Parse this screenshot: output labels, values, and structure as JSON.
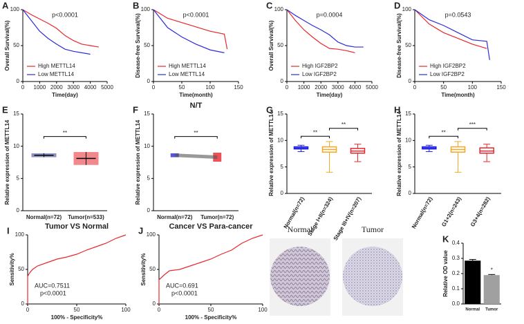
{
  "chart_data": [
    {
      "type": "survival",
      "label": "A",
      "annotation": "p<0.0001",
      "xlabel": "Time(day)",
      "ylabel": "Overall Survival(%)",
      "xlim": [
        0,
        5000
      ],
      "xticks": [
        0,
        1000,
        2000,
        3000,
        4000,
        5000
      ],
      "ylim": [
        0,
        100
      ],
      "yticks": [
        0,
        50,
        100
      ],
      "series": [
        {
          "name": "High METTL14",
          "color": "#e8262b",
          "x": [
            0,
            500,
            1000,
            1500,
            2000,
            2500,
            3000,
            3500,
            4000,
            4500
          ],
          "values": [
            100,
            93,
            87,
            81,
            74,
            64,
            57,
            52,
            50,
            48
          ]
        },
        {
          "name": "Low METTL14",
          "color": "#2b2bd9",
          "x": [
            0,
            500,
            1000,
            1500,
            2000,
            2500,
            3000,
            3500,
            4000
          ],
          "values": [
            100,
            85,
            70,
            60,
            52,
            45,
            42,
            40,
            38
          ]
        }
      ]
    },
    {
      "type": "survival",
      "label": "B",
      "annotation": "p<0.0001",
      "xlabel": "Time(month)",
      "ylabel": "Disease-free Survival(%)",
      "xlim": [
        0,
        150
      ],
      "xticks": [
        0,
        50,
        100,
        150
      ],
      "ylim": [
        0,
        100
      ],
      "yticks": [
        0,
        50,
        100
      ],
      "series": [
        {
          "name": "High METTL14",
          "color": "#e8262b",
          "x": [
            0,
            25,
            50,
            75,
            100,
            125,
            130
          ],
          "values": [
            100,
            88,
            82,
            76,
            70,
            66,
            45
          ]
        },
        {
          "name": "Low METTL14",
          "color": "#2b2bd9",
          "x": [
            0,
            25,
            50,
            75,
            100,
            125
          ],
          "values": [
            100,
            75,
            62,
            52,
            44,
            40
          ]
        }
      ]
    },
    {
      "type": "survival",
      "label": "C",
      "annotation": "p=0.0004",
      "xlabel": "Time(day)",
      "ylabel": "Overall Survival(%)",
      "xlim": [
        0,
        5000
      ],
      "xticks": [
        0,
        1000,
        2000,
        3000,
        4000,
        5000
      ],
      "ylim": [
        0,
        100
      ],
      "yticks": [
        0,
        50,
        100
      ],
      "series": [
        {
          "name": "High IGF2BP2",
          "color": "#e8262b",
          "x": [
            0,
            500,
            1000,
            1500,
            2000,
            2500,
            3000,
            3500,
            4000
          ],
          "values": [
            100,
            85,
            72,
            62,
            53,
            46,
            45,
            43,
            40
          ]
        },
        {
          "name": "Low IGF2BP2",
          "color": "#2b2bd9",
          "x": [
            0,
            500,
            1000,
            1500,
            2000,
            2500,
            3000,
            3500,
            4000,
            4500
          ],
          "values": [
            100,
            92,
            85,
            78,
            72,
            65,
            55,
            50,
            48,
            48
          ]
        }
      ]
    },
    {
      "type": "survival",
      "label": "D",
      "annotation": "p=0.0543",
      "xlabel": "Time(month)",
      "ylabel": "Disease-free Survival(%)",
      "xlim": [
        0,
        150
      ],
      "xticks": [
        0,
        50,
        100,
        150
      ],
      "ylim": [
        0,
        100
      ],
      "yticks": [
        0,
        50,
        100
      ],
      "series": [
        {
          "name": "High IGF2BP2",
          "color": "#e8262b",
          "x": [
            0,
            25,
            50,
            75,
            100,
            125
          ],
          "values": [
            100,
            80,
            68,
            60,
            52,
            46
          ]
        },
        {
          "name": "Low IGF2BP2",
          "color": "#2b2bd9",
          "x": [
            0,
            25,
            50,
            75,
            100,
            125,
            130
          ],
          "values": [
            100,
            86,
            78,
            68,
            58,
            56,
            30
          ]
        }
      ]
    },
    {
      "type": "dot",
      "label": "E",
      "ylabel": "Relative expression of METTL14",
      "categories": [
        "Normal(n=72)",
        "Tumor(n=533)"
      ],
      "values": [
        8.6,
        8.1
      ],
      "errors": [
        0.3,
        1.0
      ],
      "colors": [
        "#2a3a8c",
        "#e8262b"
      ],
      "ylim": [
        0,
        15
      ],
      "yticks": [
        0,
        5,
        10,
        15
      ],
      "annotations": [
        "**"
      ]
    },
    {
      "type": "paired",
      "label": "F",
      "title": "N/T",
      "ylabel": "Relative expression of METTL14",
      "categories": [
        "Normal(n=72)",
        "Tumor(n=72)"
      ],
      "values": [
        8.6,
        8.3
      ],
      "errors": [
        0.3,
        0.7
      ],
      "colors": [
        "#2b2bd9",
        "#e8262b"
      ],
      "ylim": [
        0,
        15
      ],
      "yticks": [
        0,
        5,
        10,
        15
      ],
      "annotations": [
        "**"
      ]
    },
    {
      "type": "box",
      "label": "G",
      "ylabel": "Relative expression of METTL14",
      "categories": [
        "Normal(n=72)",
        "Stage I+II(n=324)",
        "Stage III+IV(n=207)"
      ],
      "boxes": [
        {
          "min": 7.9,
          "q1": 8.4,
          "median": 8.6,
          "q3": 8.8,
          "max": 9.1
        },
        {
          "min": 4,
          "q1": 7.8,
          "median": 8.3,
          "q3": 8.8,
          "max": 9.8
        },
        {
          "min": 6,
          "q1": 7.6,
          "median": 8.0,
          "q3": 8.5,
          "max": 9.3
        }
      ],
      "colors": [
        "#1f1fe0",
        "#f5a623",
        "#e8262b"
      ],
      "ylim": [
        0,
        15
      ],
      "yticks": [
        0,
        5,
        10,
        15
      ],
      "annotations": [
        "**",
        "**"
      ]
    },
    {
      "type": "box",
      "label": "H",
      "ylabel": "Relative expression of METTL14",
      "categories": [
        "Normal(n=72)",
        "G1+2(n=243)",
        "G3+4(n=282)"
      ],
      "boxes": [
        {
          "min": 7.9,
          "q1": 8.4,
          "median": 8.6,
          "q3": 8.8,
          "max": 9.1
        },
        {
          "min": 4,
          "q1": 7.8,
          "median": 8.3,
          "q3": 8.8,
          "max": 9.8
        },
        {
          "min": 6,
          "q1": 7.6,
          "median": 8.0,
          "q3": 8.6,
          "max": 9.3
        }
      ],
      "colors": [
        "#1f1fe0",
        "#f5a623",
        "#e8262b"
      ],
      "ylim": [
        0,
        15
      ],
      "yticks": [
        0,
        5,
        10,
        15
      ],
      "annotations": [
        "**",
        "***"
      ]
    },
    {
      "type": "roc",
      "label": "I",
      "title": "Tumor VS Normal",
      "xlabel": "100% - Specificity%",
      "ylabel": "Sensitivity%",
      "annotations": [
        "AUC=0.7511",
        "p<0.0001"
      ],
      "color": "#e8262b",
      "x": [
        0,
        0,
        2,
        5,
        10,
        20,
        30,
        40,
        50,
        60,
        70,
        80,
        90,
        100
      ],
      "values": [
        0,
        40,
        45,
        50,
        55,
        60,
        65,
        68,
        72,
        78,
        83,
        88,
        95,
        100
      ],
      "xlim": [
        0,
        100
      ],
      "xticks": [
        0,
        50,
        100
      ],
      "ylim": [
        0,
        100
      ],
      "yticks": [
        0,
        50,
        100
      ]
    },
    {
      "type": "roc",
      "label": "J",
      "title": "Cancer VS Para-cancer",
      "xlabel": "100% - Specificity%",
      "ylabel": "Sensitivity%",
      "annotations": [
        "AUC=0.691",
        "p<0.0001"
      ],
      "color": "#e8262b",
      "x": [
        0,
        0,
        5,
        10,
        20,
        30,
        40,
        50,
        60,
        70,
        80,
        90,
        100
      ],
      "values": [
        0,
        35,
        42,
        48,
        50,
        55,
        60,
        65,
        72,
        78,
        88,
        95,
        100
      ],
      "xlim": [
        0,
        100
      ],
      "xticks": [
        0,
        50,
        100
      ],
      "ylim": [
        0,
        100
      ],
      "yticks": [
        0,
        50,
        100
      ]
    },
    {
      "type": "bar",
      "label": "K",
      "image_titles": [
        "Normal",
        "Tumor"
      ],
      "ylabel": "Relative OD value",
      "categories": [
        "Normal",
        "Tumor"
      ],
      "values": [
        0.285,
        0.19
      ],
      "errors": [
        0.008,
        0.004
      ],
      "colors": [
        "#000000",
        "#a0a0a0"
      ],
      "ylim": [
        0,
        0.4
      ],
      "yticks": [
        {
          "value": 0,
          "label": "0.0"
        },
        0.1,
        0.2,
        0.3,
        0.4
      ],
      "annotations": [
        "*"
      ]
    }
  ]
}
